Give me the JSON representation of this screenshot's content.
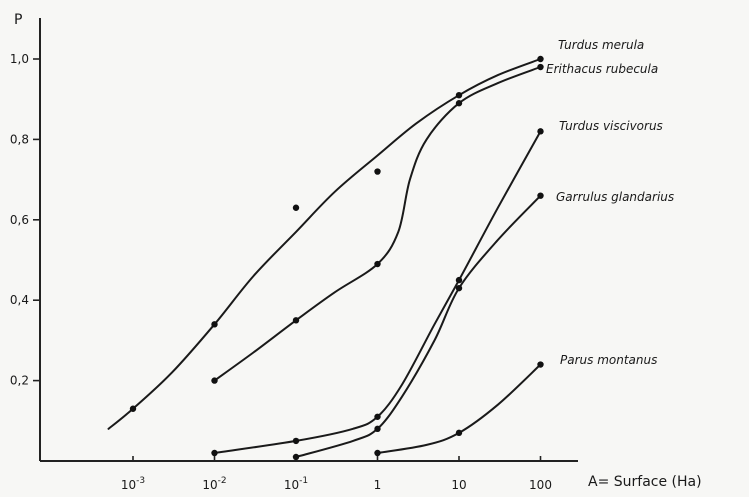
{
  "chart_data": {
    "type": "line",
    "ylabel": "P",
    "xlabel": "A= Surface (Ha)",
    "x_scale": "log",
    "xlim": [
      0.0003,
      200
    ],
    "ylim": [
      0,
      1.05
    ],
    "xticks": [
      {
        "value": 0.001,
        "base": "10",
        "exp": "-3"
      },
      {
        "value": 0.01,
        "base": "10",
        "exp": "-2"
      },
      {
        "value": 0.1,
        "base": "10",
        "exp": "-1"
      },
      {
        "value": 1,
        "label": "1"
      },
      {
        "value": 10,
        "label": "10"
      },
      {
        "value": 100,
        "label": "100"
      }
    ],
    "yticks": [
      {
        "value": 0.2,
        "label": "0,2"
      },
      {
        "value": 0.4,
        "label": "0,4"
      },
      {
        "value": 0.6,
        "label": "0,6"
      },
      {
        "value": 0.8,
        "label": "0,8"
      },
      {
        "value": 1.0,
        "label": "1,0"
      }
    ],
    "series": [
      {
        "name": "Turdus merula",
        "points": [
          [
            0.001,
            0.13
          ],
          [
            0.01,
            0.34
          ],
          [
            0.1,
            0.63
          ],
          [
            1,
            0.72
          ],
          [
            10,
            0.91
          ],
          [
            100,
            1.0
          ]
        ],
        "curve": [
          [
            0.0005,
            0.08
          ],
          [
            0.001,
            0.13
          ],
          [
            0.003,
            0.22
          ],
          [
            0.01,
            0.34
          ],
          [
            0.03,
            0.46
          ],
          [
            0.1,
            0.57
          ],
          [
            0.3,
            0.67
          ],
          [
            1,
            0.76
          ],
          [
            3,
            0.84
          ],
          [
            10,
            0.91
          ],
          [
            30,
            0.96
          ],
          [
            100,
            1.0
          ]
        ]
      },
      {
        "name": "Erithacus rubecula",
        "points": [
          [
            0.01,
            0.2
          ],
          [
            0.1,
            0.35
          ],
          [
            1,
            0.49
          ],
          [
            10,
            0.89
          ],
          [
            100,
            0.98
          ]
        ],
        "curve": [
          [
            0.01,
            0.2
          ],
          [
            0.03,
            0.27
          ],
          [
            0.1,
            0.35
          ],
          [
            0.3,
            0.42
          ],
          [
            1,
            0.49
          ],
          [
            1.8,
            0.57
          ],
          [
            2.5,
            0.7
          ],
          [
            4,
            0.8
          ],
          [
            10,
            0.89
          ],
          [
            30,
            0.94
          ],
          [
            100,
            0.98
          ]
        ]
      },
      {
        "name": "Turdus viscivorus",
        "points": [
          [
            0.01,
            0.02
          ],
          [
            0.1,
            0.05
          ],
          [
            1,
            0.11
          ],
          [
            10,
            0.45
          ],
          [
            100,
            0.82
          ]
        ],
        "curve": [
          [
            0.01,
            0.02
          ],
          [
            0.1,
            0.05
          ],
          [
            0.5,
            0.08
          ],
          [
            1,
            0.11
          ],
          [
            2,
            0.19
          ],
          [
            5,
            0.34
          ],
          [
            10,
            0.45
          ],
          [
            30,
            0.63
          ],
          [
            100,
            0.82
          ]
        ]
      },
      {
        "name": "Garrulus glandarius",
        "points": [
          [
            0.1,
            0.01
          ],
          [
            1,
            0.08
          ],
          [
            10,
            0.43
          ],
          [
            100,
            0.66
          ]
        ],
        "curve": [
          [
            0.1,
            0.01
          ],
          [
            0.5,
            0.05
          ],
          [
            1,
            0.08
          ],
          [
            2,
            0.16
          ],
          [
            5,
            0.3
          ],
          [
            10,
            0.43
          ],
          [
            30,
            0.55
          ],
          [
            100,
            0.66
          ]
        ]
      },
      {
        "name": "Parus montanus",
        "points": [
          [
            1,
            0.02
          ],
          [
            10,
            0.07
          ],
          [
            100,
            0.24
          ]
        ],
        "curve": [
          [
            1,
            0.02
          ],
          [
            4,
            0.04
          ],
          [
            10,
            0.07
          ],
          [
            30,
            0.14
          ],
          [
            100,
            0.24
          ]
        ]
      }
    ]
  }
}
